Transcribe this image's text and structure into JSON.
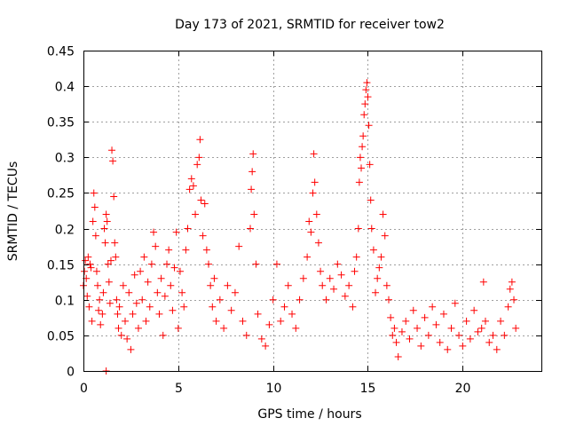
{
  "chart_data": {
    "type": "scatter",
    "title": "Day 173 of 2021, SRMTID for receiver tow2",
    "xlabel": "GPS time / hours",
    "ylabel": "SRMTID / TECUs",
    "xlim": [
      0,
      24.15
    ],
    "ylim": [
      0,
      0.45
    ],
    "x_ticks": [
      0,
      5,
      10,
      15,
      20
    ],
    "x_tick_labels": [
      "0",
      "5",
      "10",
      "15",
      "20"
    ],
    "y_ticks": [
      0,
      0.05,
      0.1,
      0.15,
      0.2,
      0.25,
      0.3,
      0.35,
      0.4,
      0.45
    ],
    "y_tick_labels": [
      "0",
      "0.05",
      "0.1",
      "0.15",
      "0.2",
      "0.25",
      "0.3",
      "0.35",
      "0.4",
      "0.45"
    ],
    "grid": true,
    "marker": "+",
    "marker_color": "#ff0000",
    "series": [
      {
        "name": "SRMTID",
        "points": [
          [
            0.0,
            0.12
          ],
          [
            0.05,
            0.14
          ],
          [
            0.1,
            0.155
          ],
          [
            0.15,
            0.13
          ],
          [
            0.2,
            0.105
          ],
          [
            0.25,
            0.16
          ],
          [
            0.3,
            0.09
          ],
          [
            0.35,
            0.15
          ],
          [
            0.4,
            0.145
          ],
          [
            0.45,
            0.07
          ],
          [
            0.5,
            0.21
          ],
          [
            0.55,
            0.25
          ],
          [
            0.6,
            0.23
          ],
          [
            0.65,
            0.19
          ],
          [
            0.7,
            0.14
          ],
          [
            0.75,
            0.12
          ],
          [
            0.8,
            0.085
          ],
          [
            0.85,
            0.1
          ],
          [
            0.9,
            0.065
          ],
          [
            1.0,
            0.08
          ],
          [
            1.05,
            0.11
          ],
          [
            1.1,
            0.2
          ],
          [
            1.15,
            0.18
          ],
          [
            1.2,
            0.22
          ],
          [
            1.25,
            0.21
          ],
          [
            1.3,
            0.15
          ],
          [
            1.35,
            0.125
          ],
          [
            1.4,
            0.095
          ],
          [
            1.45,
            0.155
          ],
          [
            1.5,
            0.31
          ],
          [
            1.55,
            0.295
          ],
          [
            1.6,
            0.245
          ],
          [
            1.65,
            0.18
          ],
          [
            1.7,
            0.16
          ],
          [
            1.75,
            0.1
          ],
          [
            1.8,
            0.08
          ],
          [
            1.85,
            0.06
          ],
          [
            1.9,
            0.09
          ],
          [
            2.0,
            0.05
          ],
          [
            2.1,
            0.12
          ],
          [
            2.2,
            0.07
          ],
          [
            2.3,
            0.045
          ],
          [
            2.4,
            0.11
          ],
          [
            2.5,
            0.03
          ],
          [
            2.6,
            0.08
          ],
          [
            2.7,
            0.135
          ],
          [
            2.8,
            0.095
          ],
          [
            2.9,
            0.06
          ],
          [
            3.0,
            0.14
          ],
          [
            3.1,
            0.1
          ],
          [
            3.2,
            0.16
          ],
          [
            3.3,
            0.07
          ],
          [
            3.4,
            0.125
          ],
          [
            3.5,
            0.09
          ],
          [
            3.6,
            0.15
          ],
          [
            3.7,
            0.195
          ],
          [
            3.8,
            0.175
          ],
          [
            3.9,
            0.11
          ],
          [
            4.0,
            0.08
          ],
          [
            4.1,
            0.13
          ],
          [
            4.2,
            0.05
          ],
          [
            4.3,
            0.105
          ],
          [
            4.4,
            0.15
          ],
          [
            4.5,
            0.17
          ],
          [
            4.6,
            0.12
          ],
          [
            4.7,
            0.085
          ],
          [
            4.8,
            0.145
          ],
          [
            4.9,
            0.195
          ],
          [
            5.0,
            0.06
          ],
          [
            5.1,
            0.14
          ],
          [
            5.2,
            0.11
          ],
          [
            5.3,
            0.09
          ],
          [
            5.4,
            0.17
          ],
          [
            5.5,
            0.2
          ],
          [
            5.6,
            0.255
          ],
          [
            5.7,
            0.27
          ],
          [
            5.8,
            0.26
          ],
          [
            5.9,
            0.22
          ],
          [
            6.0,
            0.29
          ],
          [
            6.1,
            0.3
          ],
          [
            6.15,
            0.325
          ],
          [
            6.2,
            0.24
          ],
          [
            6.3,
            0.19
          ],
          [
            6.4,
            0.235
          ],
          [
            6.5,
            0.17
          ],
          [
            6.6,
            0.15
          ],
          [
            6.7,
            0.12
          ],
          [
            6.8,
            0.09
          ],
          [
            6.9,
            0.13
          ],
          [
            7.0,
            0.07
          ],
          [
            7.2,
            0.1
          ],
          [
            7.4,
            0.06
          ],
          [
            7.6,
            0.12
          ],
          [
            7.8,
            0.085
          ],
          [
            8.0,
            0.11
          ],
          [
            8.2,
            0.175
          ],
          [
            8.4,
            0.07
          ],
          [
            8.6,
            0.05
          ],
          [
            8.8,
            0.2
          ],
          [
            8.85,
            0.255
          ],
          [
            8.9,
            0.28
          ],
          [
            8.95,
            0.305
          ],
          [
            9.0,
            0.22
          ],
          [
            9.1,
            0.15
          ],
          [
            9.2,
            0.08
          ],
          [
            9.4,
            0.045
          ],
          [
            9.6,
            0.035
          ],
          [
            9.8,
            0.065
          ],
          [
            10.0,
            0.1
          ],
          [
            10.2,
            0.15
          ],
          [
            10.4,
            0.07
          ],
          [
            10.6,
            0.09
          ],
          [
            10.8,
            0.12
          ],
          [
            11.0,
            0.08
          ],
          [
            11.2,
            0.06
          ],
          [
            11.4,
            0.1
          ],
          [
            11.6,
            0.13
          ],
          [
            11.8,
            0.16
          ],
          [
            11.9,
            0.21
          ],
          [
            12.0,
            0.195
          ],
          [
            12.1,
            0.25
          ],
          [
            12.15,
            0.305
          ],
          [
            12.2,
            0.265
          ],
          [
            12.3,
            0.22
          ],
          [
            12.4,
            0.18
          ],
          [
            12.5,
            0.14
          ],
          [
            12.6,
            0.12
          ],
          [
            12.8,
            0.1
          ],
          [
            13.0,
            0.13
          ],
          [
            13.2,
            0.115
          ],
          [
            13.4,
            0.15
          ],
          [
            13.6,
            0.135
          ],
          [
            13.8,
            0.105
          ],
          [
            14.0,
            0.12
          ],
          [
            14.2,
            0.09
          ],
          [
            14.3,
            0.14
          ],
          [
            14.4,
            0.16
          ],
          [
            14.5,
            0.2
          ],
          [
            14.55,
            0.265
          ],
          [
            14.6,
            0.3
          ],
          [
            14.65,
            0.285
          ],
          [
            14.7,
            0.315
          ],
          [
            14.75,
            0.33
          ],
          [
            14.8,
            0.36
          ],
          [
            14.85,
            0.375
          ],
          [
            14.9,
            0.395
          ],
          [
            14.95,
            0.405
          ],
          [
            15.0,
            0.385
          ],
          [
            15.05,
            0.345
          ],
          [
            15.1,
            0.29
          ],
          [
            15.15,
            0.24
          ],
          [
            15.2,
            0.2
          ],
          [
            15.3,
            0.17
          ],
          [
            15.4,
            0.11
          ],
          [
            15.5,
            0.13
          ],
          [
            15.6,
            0.145
          ],
          [
            15.7,
            0.16
          ],
          [
            15.8,
            0.22
          ],
          [
            15.9,
            0.19
          ],
          [
            16.0,
            0.12
          ],
          [
            16.1,
            0.1
          ],
          [
            16.2,
            0.075
          ],
          [
            16.3,
            0.05
          ],
          [
            16.4,
            0.06
          ],
          [
            16.5,
            0.04
          ],
          [
            16.6,
            0.02
          ],
          [
            16.8,
            0.055
          ],
          [
            17.0,
            0.07
          ],
          [
            17.2,
            0.045
          ],
          [
            17.4,
            0.085
          ],
          [
            17.6,
            0.06
          ],
          [
            17.8,
            0.035
          ],
          [
            18.0,
            0.075
          ],
          [
            18.2,
            0.05
          ],
          [
            18.4,
            0.09
          ],
          [
            18.6,
            0.065
          ],
          [
            18.8,
            0.04
          ],
          [
            19.0,
            0.08
          ],
          [
            19.2,
            0.03
          ],
          [
            19.4,
            0.06
          ],
          [
            19.6,
            0.095
          ],
          [
            19.8,
            0.05
          ],
          [
            20.0,
            0.035
          ],
          [
            20.2,
            0.07
          ],
          [
            20.4,
            0.045
          ],
          [
            20.6,
            0.085
          ],
          [
            20.8,
            0.055
          ],
          [
            21.0,
            0.06
          ],
          [
            21.1,
            0.125
          ],
          [
            21.2,
            0.07
          ],
          [
            21.4,
            0.04
          ],
          [
            21.6,
            0.05
          ],
          [
            21.8,
            0.03
          ],
          [
            22.0,
            0.07
          ],
          [
            22.2,
            0.05
          ],
          [
            22.4,
            0.09
          ],
          [
            22.5,
            0.115
          ],
          [
            22.6,
            0.125
          ],
          [
            22.7,
            0.1
          ],
          [
            22.8,
            0.06
          ],
          [
            1.2,
            0.0
          ]
        ]
      }
    ]
  }
}
